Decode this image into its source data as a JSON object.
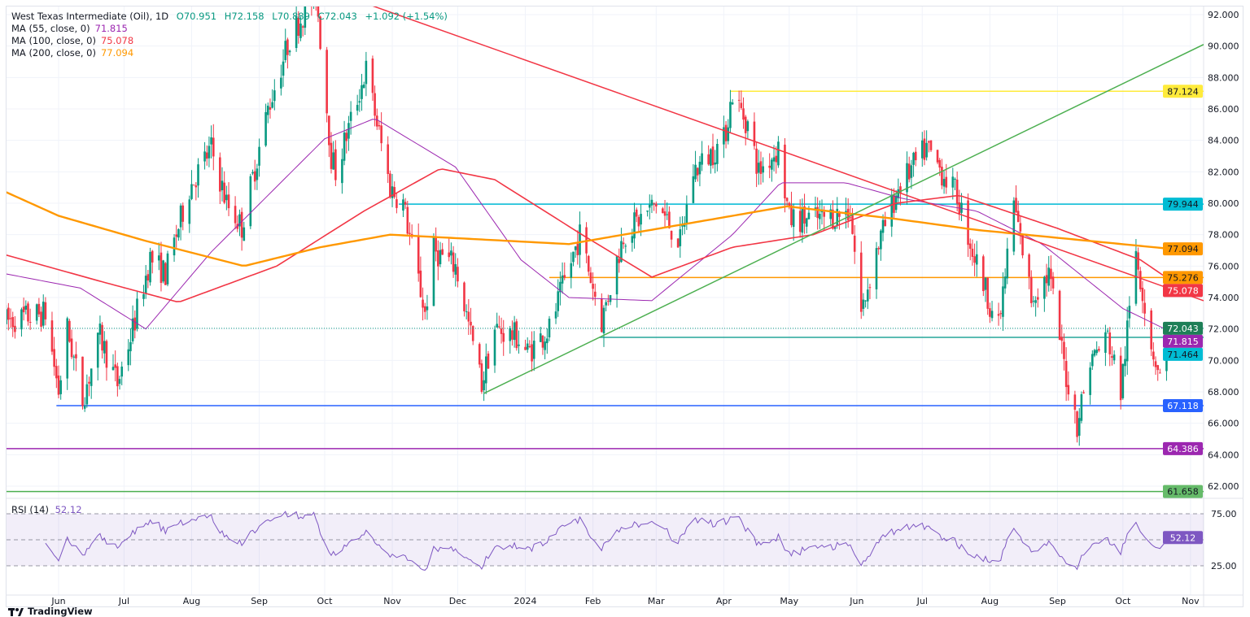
{
  "chart_data": {
    "type": "candlestick",
    "title": "West Texas Intermediate (Oil), 1D",
    "ohlc": {
      "open_label": "O70.951",
      "high_label": "H72.158",
      "low_label": "L70.889",
      "close_label": "C72.043",
      "change_label": "+1.092 (+1.54%)",
      "open": 70.951,
      "high": 72.158,
      "low": 70.889,
      "close": 72.043
    },
    "indicators": [
      {
        "label": "MA (55, close, 0)",
        "value": "71.815",
        "color": "#9c27b0"
      },
      {
        "label": "MA (100, close, 0)",
        "value": "75.078",
        "color": "#f23645"
      },
      {
        "label": "MA (200, close, 0)",
        "value": "77.094",
        "color": "#ff9800"
      }
    ],
    "colors": {
      "up": "#089981",
      "down": "#f23645",
      "grid": "#f0f3fa",
      "rsi": "#7e57c2",
      "rsi_band": "#7e57c2"
    },
    "ylim": [
      61,
      92.9
    ],
    "price_ticks": [
      "62.000",
      "64.000",
      "66.000",
      "68.000",
      "70.000",
      "72.000",
      "74.000",
      "76.000",
      "78.000",
      "80.000",
      "82.000",
      "84.000",
      "86.000",
      "88.000",
      "90.000",
      "92.000"
    ],
    "time_axis": [
      {
        "label": "Jun",
        "day": 0
      },
      {
        "label": "Jul",
        "day": 30
      },
      {
        "label": "Aug",
        "day": 61
      },
      {
        "label": "Sep",
        "day": 92
      },
      {
        "label": "Oct",
        "day": 122
      },
      {
        "label": "Nov",
        "day": 153
      },
      {
        "label": "Dec",
        "day": 183
      },
      {
        "label": "2024",
        "day": 214
      },
      {
        "label": "Feb",
        "day": 245
      },
      {
        "label": "Mar",
        "day": 274
      },
      {
        "label": "Apr",
        "day": 305
      },
      {
        "label": "May",
        "day": 335
      },
      {
        "label": "Jun",
        "day": 366
      },
      {
        "label": "Jul",
        "day": 396
      },
      {
        "label": "Aug",
        "day": 427
      },
      {
        "label": "Sep",
        "day": 458
      },
      {
        "label": "Oct",
        "day": 488
      },
      {
        "label": "Nov",
        "day": 519
      }
    ],
    "x_range_days": [
      -24,
      525
    ],
    "price_path": [
      [
        -24,
        72.5
      ],
      [
        -6,
        73
      ],
      [
        0,
        68
      ],
      [
        4,
        72
      ],
      [
        11,
        67.5
      ],
      [
        19,
        71.5
      ],
      [
        27,
        68.5
      ],
      [
        34,
        72
      ],
      [
        42,
        76.5
      ],
      [
        49,
        75.5
      ],
      [
        60,
        81
      ],
      [
        70,
        83.5
      ],
      [
        77,
        80
      ],
      [
        84,
        78.5
      ],
      [
        96,
        86
      ],
      [
        106,
        90.5
      ],
      [
        118,
        93.5
      ],
      [
        125,
        83
      ],
      [
        127,
        82
      ],
      [
        141,
        88.5
      ],
      [
        152,
        81
      ],
      [
        158,
        80
      ],
      [
        168,
        73
      ],
      [
        172,
        77
      ],
      [
        182,
        76
      ],
      [
        194,
        68.5
      ],
      [
        200,
        72
      ],
      [
        210,
        71.5
      ],
      [
        215,
        70.5
      ],
      [
        225,
        72
      ],
      [
        239,
        78
      ],
      [
        249,
        72.5
      ],
      [
        259,
        78
      ],
      [
        274,
        80
      ],
      [
        285,
        77.5
      ],
      [
        291,
        82
      ],
      [
        305,
        84
      ],
      [
        309,
        87
      ],
      [
        316,
        85
      ],
      [
        321,
        82
      ],
      [
        330,
        83.5
      ],
      [
        335,
        79
      ],
      [
        349,
        79
      ],
      [
        363,
        79.5
      ],
      [
        368,
        73
      ],
      [
        375,
        77
      ],
      [
        385,
        81
      ],
      [
        398,
        83.5
      ],
      [
        405,
        82
      ],
      [
        412,
        80.5
      ],
      [
        419,
        77
      ],
      [
        431,
        72
      ],
      [
        438,
        80
      ],
      [
        446,
        74
      ],
      [
        454,
        75.5
      ],
      [
        462,
        69
      ],
      [
        467,
        66
      ],
      [
        473,
        70
      ],
      [
        481,
        71.5
      ],
      [
        487,
        68
      ],
      [
        494,
        77
      ],
      [
        501,
        71
      ],
      [
        505,
        69
      ],
      [
        510,
        72.043
      ]
    ],
    "moving_averages": [
      {
        "name": "MA55",
        "color": "#9c27b0",
        "width": 1,
        "points": [
          [
            -24,
            75.5
          ],
          [
            10,
            74.6
          ],
          [
            40,
            72
          ],
          [
            70,
            76.9
          ],
          [
            122,
            84.1
          ],
          [
            145,
            85.4
          ],
          [
            182,
            82.3
          ],
          [
            212,
            76.4
          ],
          [
            234,
            74
          ],
          [
            272,
            73.8
          ],
          [
            309,
            78
          ],
          [
            331,
            81.3
          ],
          [
            361,
            81.3
          ],
          [
            387,
            80.3
          ],
          [
            421,
            79.5
          ],
          [
            451,
            77.4
          ],
          [
            488,
            73.3
          ],
          [
            510,
            71.815
          ]
        ]
      },
      {
        "name": "MA100",
        "color": "#f23645",
        "width": 1.6,
        "points": [
          [
            -24,
            76.7
          ],
          [
            20,
            75
          ],
          [
            55,
            73.7
          ],
          [
            100,
            76
          ],
          [
            140,
            79.5
          ],
          [
            175,
            82.2
          ],
          [
            200,
            81.5
          ],
          [
            240,
            78
          ],
          [
            272,
            75.3
          ],
          [
            309,
            77.2
          ],
          [
            346,
            78
          ],
          [
            384,
            80
          ],
          [
            413,
            80.5
          ],
          [
            458,
            78.4
          ],
          [
            496,
            76.4
          ],
          [
            510,
            75.078
          ]
        ]
      },
      {
        "name": "MA200",
        "color": "#ff9800",
        "width": 2.4,
        "points": [
          [
            -24,
            80.7
          ],
          [
            0,
            79.2
          ],
          [
            40,
            77.6
          ],
          [
            85,
            76
          ],
          [
            120,
            77.2
          ],
          [
            152,
            78
          ],
          [
            234,
            77.4
          ],
          [
            309,
            79.2
          ],
          [
            334,
            79.8
          ],
          [
            384,
            79
          ],
          [
            421,
            78.3
          ],
          [
            458,
            77.8
          ],
          [
            510,
            77.094
          ]
        ]
      }
    ],
    "trendlines": [
      {
        "name": "descending-resistance",
        "color": "#f23645",
        "from": [
          137,
          92.9
        ],
        "to": [
          525,
          73.8
        ]
      },
      {
        "name": "ascending-support",
        "color": "#4caf50",
        "from": [
          195,
          67.9
        ],
        "to": [
          525,
          90.1
        ]
      }
    ],
    "levels": [
      {
        "price": 87.124,
        "label": "87.124",
        "from_day": 308,
        "color": "#ffeb3b",
        "text": "#131722"
      },
      {
        "price": 79.944,
        "label": "79.944",
        "from_day": 156,
        "color": "#00bcd4",
        "text": "#131722"
      },
      {
        "price": 75.276,
        "label": "75.276",
        "from_day": 225,
        "color": "#ff9800",
        "text": "#131722"
      },
      {
        "price": 71.464,
        "label": "71.464",
        "from_day": 248,
        "color": "#26a69a",
        "text": "#131722",
        "tag": "#00bcd4"
      },
      {
        "price": 67.118,
        "label": "67.118",
        "from_day": -1,
        "color": "#2962ff",
        "text": "#ffffff"
      },
      {
        "price": 64.386,
        "label": "64.386",
        "from_day": -24,
        "color": "#9c27b0",
        "text": "#ffffff"
      },
      {
        "price": 61.658,
        "label": "61.658",
        "from_day": -24,
        "color": "#4caf50",
        "text": "#131722",
        "tag": "#66bb6a"
      }
    ],
    "tags": [
      {
        "price": 87.124,
        "label": "87.124",
        "color": "#ffeb3b",
        "text": "#131722"
      },
      {
        "price": 79.944,
        "label": "79.944",
        "color": "#00bcd4",
        "text": "#131722"
      },
      {
        "price": 77.094,
        "label": "77.094",
        "color": "#ff9800",
        "text": "#131722"
      },
      {
        "price": 75.276,
        "label": "75.276",
        "color": "#ff9800",
        "text": "#131722"
      },
      {
        "price": 75.078,
        "label": "75.078",
        "color": "#f23645",
        "text": "#ffffff"
      },
      {
        "price": 72.043,
        "label": "72.043",
        "color": "#1e7f57",
        "text": "#ffffff"
      },
      {
        "price": 71.815,
        "label": "71.815",
        "color": "#9c27b0",
        "text": "#ffffff"
      },
      {
        "price": 71.464,
        "label": "71.464",
        "color": "#00bcd4",
        "text": "#131722"
      },
      {
        "price": 67.118,
        "label": "67.118",
        "color": "#2962ff",
        "text": "#ffffff"
      },
      {
        "price": 64.386,
        "label": "64.386",
        "color": "#9c27b0",
        "text": "#ffffff"
      },
      {
        "price": 61.658,
        "label": "61.658",
        "color": "#66bb6a",
        "text": "#131722"
      }
    ],
    "rsi": {
      "label": "RSI (14)",
      "value": "52.12",
      "period": 14,
      "upper": 75,
      "lower": 25,
      "ticks": [
        "75.00",
        "25.00"
      ],
      "range": [
        25,
        75
      ]
    }
  },
  "branding": {
    "name": "TradingView"
  }
}
